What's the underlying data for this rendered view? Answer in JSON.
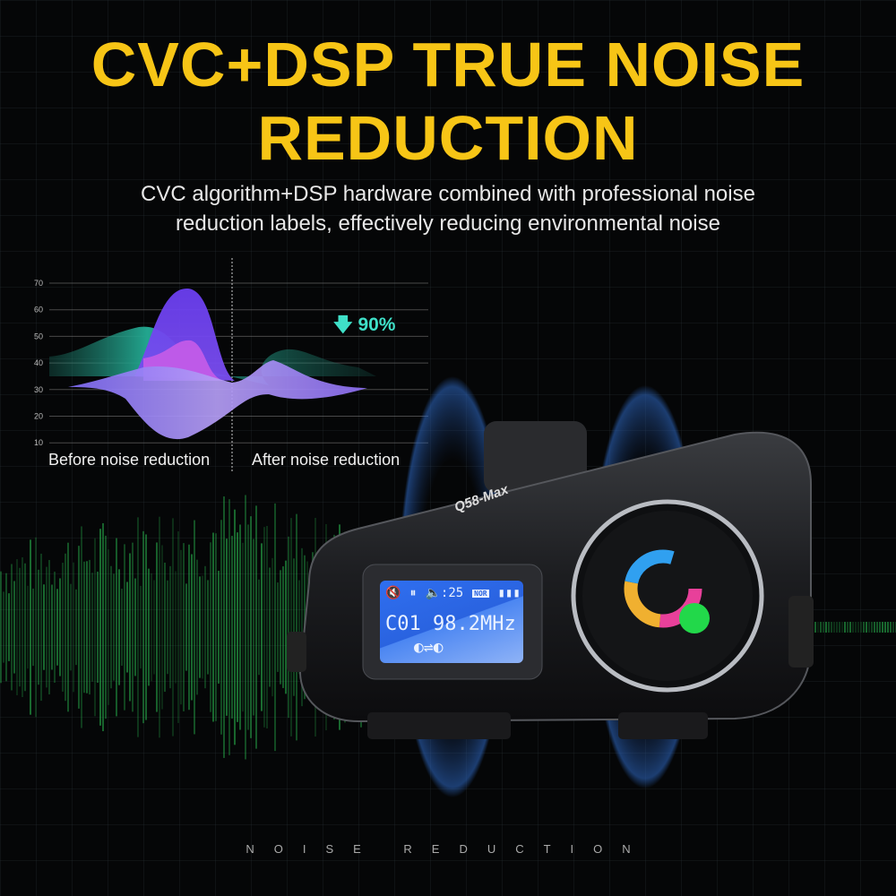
{
  "headline": {
    "line1": "CVC+DSP TRUE NOISE",
    "line2": "REDUCTION"
  },
  "subtitle": {
    "line1": "CVC algorithm+DSP hardware combined with professional noise",
    "line2": "reduction labels, effectively reducing environmental noise"
  },
  "graphic": {
    "y_ticks": [
      "70",
      "60",
      "50",
      "40",
      "30",
      "20",
      "10"
    ],
    "before_label": "Before noise reduction",
    "after_label": "After noise reduction",
    "reduction": "90%",
    "reduction_icon": "arrow-down-icon"
  },
  "device": {
    "model": "Q58-Max",
    "display": {
      "volume": "25",
      "mode_badge": "NOR",
      "channel": "C01",
      "frequency": "98.2MHz",
      "link_symbol": "⇌"
    }
  },
  "footer": "NOISE REDUCTION",
  "colors": {
    "headline": "#f7c516",
    "accent": "#3fe0c8",
    "purple": "#7a4df0",
    "wave": "#2fd25a"
  }
}
